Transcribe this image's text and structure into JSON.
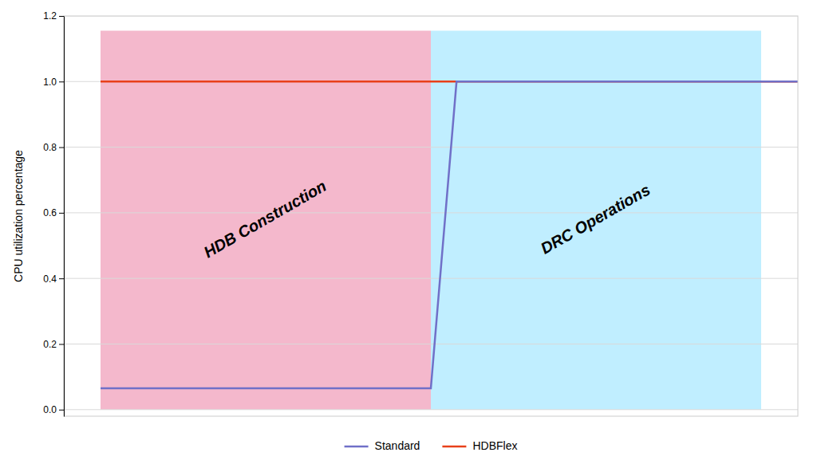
{
  "chart_data": {
    "type": "line",
    "y_label": "CPU utilization percentage",
    "xlim": [
      0,
      10
    ],
    "ylim": [
      -0.02,
      1.2
    ],
    "yticks": [
      {
        "value": 0,
        "label": "0.0"
      },
      0.2,
      0.4,
      0.6,
      0.8,
      {
        "value": 1.0,
        "label": "1.0"
      },
      1.2
    ],
    "grid": true,
    "legend": "bottom",
    "tick_labels": "y",
    "regions": [
      {
        "label": "HDB Construction",
        "x": [
          0.5,
          5.0
        ],
        "y": [
          0.0,
          1.155
        ],
        "color": "#f4b8cc"
      },
      {
        "label": "DRC Operations",
        "x": [
          5.0,
          9.5
        ],
        "y": [
          0.0,
          1.155
        ],
        "color": "#c0eeff"
      }
    ],
    "series": [
      {
        "name": "Standard",
        "color": "#7070c8",
        "x": [
          0.5,
          4.97,
          5.0,
          5.35,
          10.0
        ],
        "values": [
          0.065,
          0.065,
          0.065,
          1.0,
          1.0
        ]
      },
      {
        "name": "HDBFlex",
        "color": "#e8401a",
        "x": [
          0.5,
          10.0
        ],
        "values": [
          1.0,
          1.0
        ]
      }
    ]
  }
}
